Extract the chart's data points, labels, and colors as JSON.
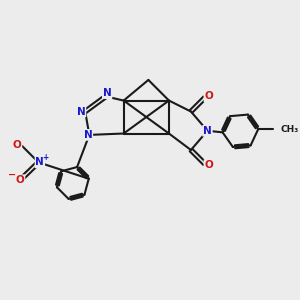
{
  "bg_color": "#ececec",
  "bond_color": "#1a1a1a",
  "bond_width": 1.5,
  "N_color": "#1818cc",
  "O_color": "#cc1818",
  "figsize": [
    3.0,
    3.0
  ],
  "dpi": 100,
  "xlim": [
    0,
    10
  ],
  "ylim": [
    0,
    10
  ]
}
